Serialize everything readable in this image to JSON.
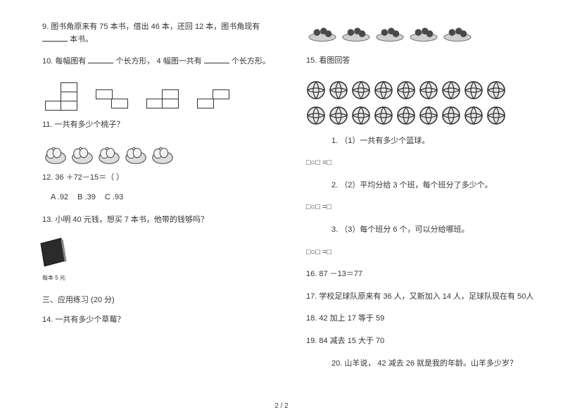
{
  "page_number": "2 / 2",
  "colors": {
    "text": "#333333",
    "bg": "#ffffff",
    "line": "#333333",
    "ball_stroke": "#2a2a2a",
    "ball_fill": "#e8e8e8",
    "plate_fill": "#cfcfcf",
    "berry_fill": "#4a4a4a",
    "peach_stroke": "#3a3a3a",
    "peach_fill": "#dcdcdc"
  },
  "left": {
    "q9": {
      "l1": "9.  图书角原来有 75 本书，借出  46 本，还回 12 本，图书角现有",
      "l2_suffix": "本书。"
    },
    "q10": {
      "pre": "10.  每幅图有 ",
      "mid": "个长方形， 4 幅图一共有 ",
      "post": "个长方形。",
      "shapes_count": 4
    },
    "q11": {
      "text": "11.  一共有多少个桃子？",
      "peaches": 5
    },
    "q12": {
      "text": "12. 36 ＋72－15＝（  ）",
      "choices": {
        "a": "A .92",
        "b": "B .39",
        "c": "C .93"
      }
    },
    "q13": {
      "text": "13.  小明 40 元钱，想买 7 本书，他带的钱够吗？",
      "price": "每本 5 元"
    },
    "section3": "三、应用练习  (20 分)",
    "q14": {
      "text": "14.  一共有多少个草莓？"
    }
  },
  "right": {
    "q14_plates": 5,
    "q15": {
      "title": "15.  看图回答",
      "row1_balls": 9,
      "row2_balls": 9,
      "sub1": "1.  （1）一共有多少个篮球。",
      "sub2": "2.  （2）平均分给 3 个班，每个班分了多少个。",
      "sub3": "3.  （3）每个班分 6 个，可以分给哪班。",
      "expr": "□○□ =□"
    },
    "q16": "16. 87 －13＝77",
    "q17": "17.  学校足球队原来有  36 人，又新加入 14 人，足球队现在有  50人",
    "q18": "18. 42 加上 17 等于 59",
    "q19": "19. 84 减去 15 大于 70",
    "q20": "20.  山羊说， 42 减去 26 就是我的年龄。山羊多少岁？"
  }
}
